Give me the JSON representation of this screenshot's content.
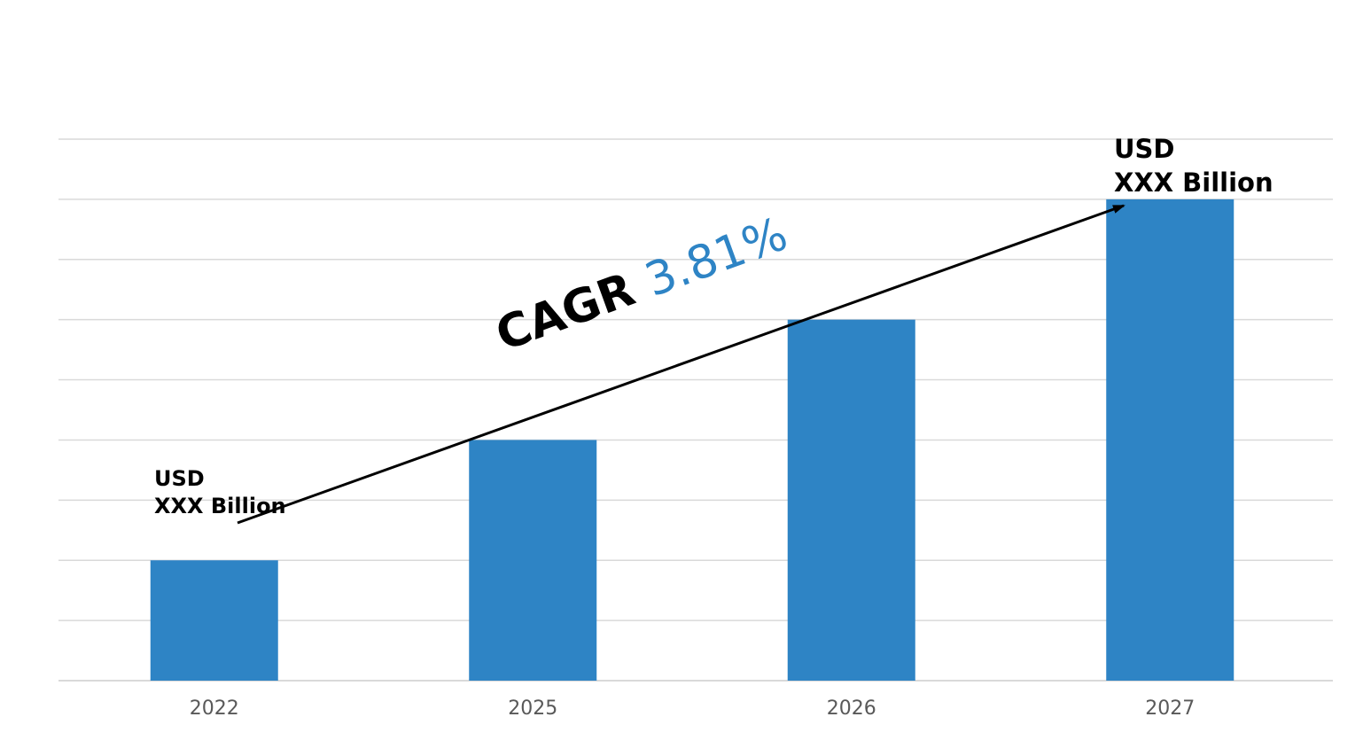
{
  "chart_data": {
    "type": "bar",
    "categories": [
      "2022",
      "2025",
      "2026",
      "2027"
    ],
    "values": [
      2,
      4,
      6,
      8
    ],
    "ylim": [
      0,
      9
    ],
    "grid": true,
    "bar_color": "#2E84C5",
    "grid_color": "#D9D9D9"
  },
  "annotations": {
    "start": {
      "line1": "USD",
      "line2": "XXX Billion"
    },
    "end": {
      "line1": "USD",
      "line2": "XXX Billion"
    },
    "cagr": {
      "label": "CAGR",
      "value": "3.81%",
      "value_color": "#2E84C5"
    }
  }
}
